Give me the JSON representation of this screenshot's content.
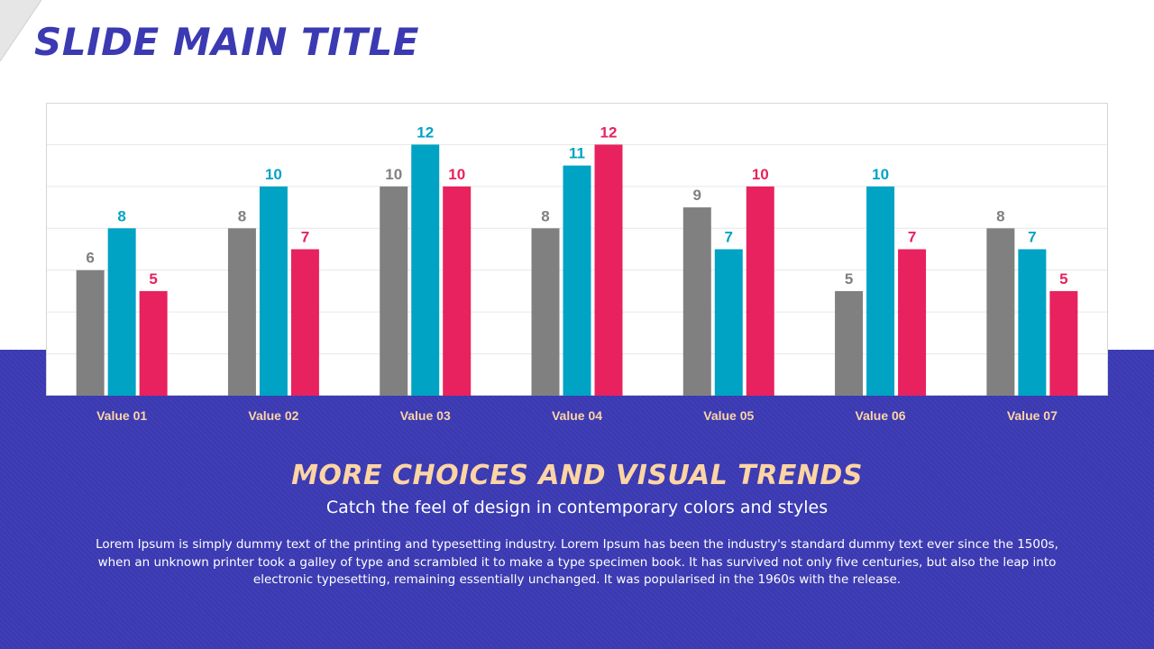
{
  "slide": {
    "title": "SLIDE MAIN TITLE",
    "subheading": "MORE CHOICES AND VISUAL TRENDS",
    "tagline": "Catch the feel of design in contemporary colors and styles",
    "body": "Lorem Ipsum is simply dummy text of the printing and typesetting industry. Lorem Ipsum has been the industry's standard dummy text ever since the 1500s, when an unknown printer took a galley of type and scrambled it to make a type specimen book. It has survived not only five centuries, but also the leap into electronic typesetting, remaining essentially unchanged. It was popularised in the 1960s with the release."
  },
  "colors": {
    "brand": "#3b3ab2",
    "accent_text": "#fdd5a4",
    "category_label": "#fdd5a4"
  },
  "chart_data": {
    "type": "bar",
    "categories": [
      "Value 01",
      "Value 02",
      "Value 03",
      "Value 04",
      "Value 05",
      "Value 06",
      "Value 07"
    ],
    "series": [
      {
        "values": [
          6,
          8,
          10,
          8,
          9,
          5,
          8
        ],
        "color": "#808080"
      },
      {
        "values": [
          8,
          10,
          12,
          11,
          7,
          10,
          7
        ],
        "color": "#00a3c4"
      },
      {
        "values": [
          5,
          7,
          10,
          12,
          10,
          7,
          5
        ],
        "color": "#e8225e"
      }
    ],
    "ylim": [
      0,
      14
    ],
    "grid": true,
    "data_labels": true,
    "legend": "none"
  }
}
